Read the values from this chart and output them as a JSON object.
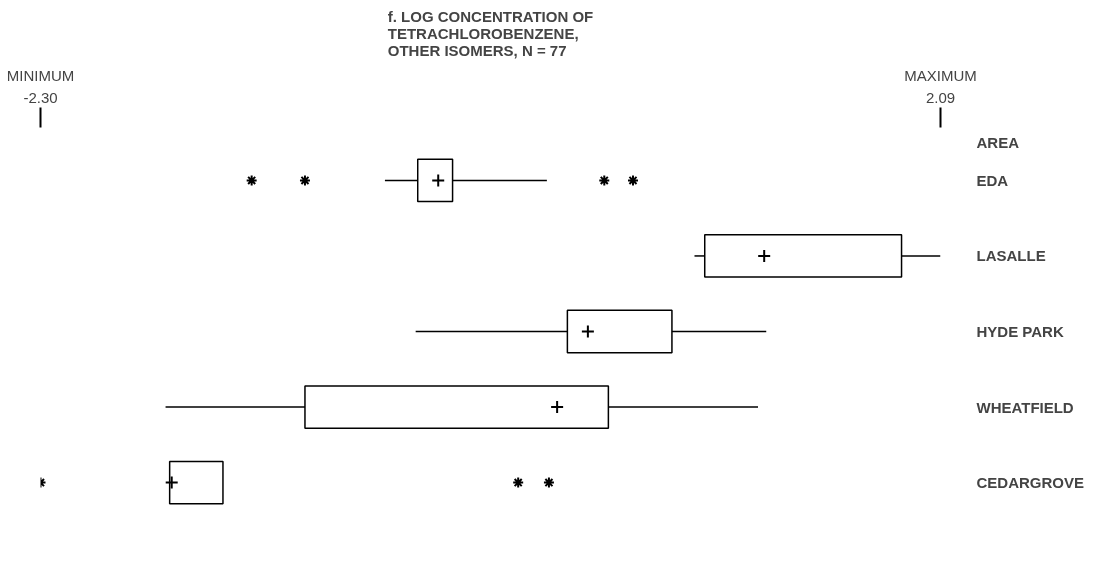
{
  "chart_data": {
    "type": "box",
    "orientation": "horizontal",
    "title": "f. LOG CONCENTRATION OF\nTETRACHLOROBENZENE,\nOTHER ISOMERS, N = 77",
    "ylabel": "AREA",
    "categories": [
      "EDA",
      "LASALLE",
      "HYDE PARK",
      "WHEATFIELD",
      "CEDARGROVE"
    ],
    "boxes": [
      {
        "low": -0.62,
        "q1": -0.46,
        "median": -0.36,
        "q3": -0.29,
        "high": 0.17,
        "outliers": [
          -1.27,
          -1.01,
          0.45,
          0.59
        ]
      },
      {
        "low": 0.89,
        "q1": 0.94,
        "median": 1.23,
        "q3": 1.9,
        "high": 2.09
      },
      {
        "low": -0.47,
        "q1": 0.27,
        "median": 0.37,
        "q3": 0.78,
        "high": 1.24
      },
      {
        "low": -1.69,
        "q1": -1.01,
        "median": 0.22,
        "q3": 0.47,
        "high": 1.2
      },
      {
        "low": -1.67,
        "q1": -1.67,
        "median": -1.66,
        "q3": -1.41,
        "high": -1.41,
        "outliers": [
          -2.3,
          0.03,
          0.18
        ]
      }
    ],
    "color": "#000000",
    "xlim": [
      -2.3,
      2.09
    ],
    "xticks": [
      {
        "value": -2.3,
        "label": "-2.30"
      },
      {
        "value": 2.09,
        "label": "2.09"
      }
    ],
    "annotations": [
      "MINIMUM",
      "MAXIMUM"
    ],
    "grid": false
  }
}
